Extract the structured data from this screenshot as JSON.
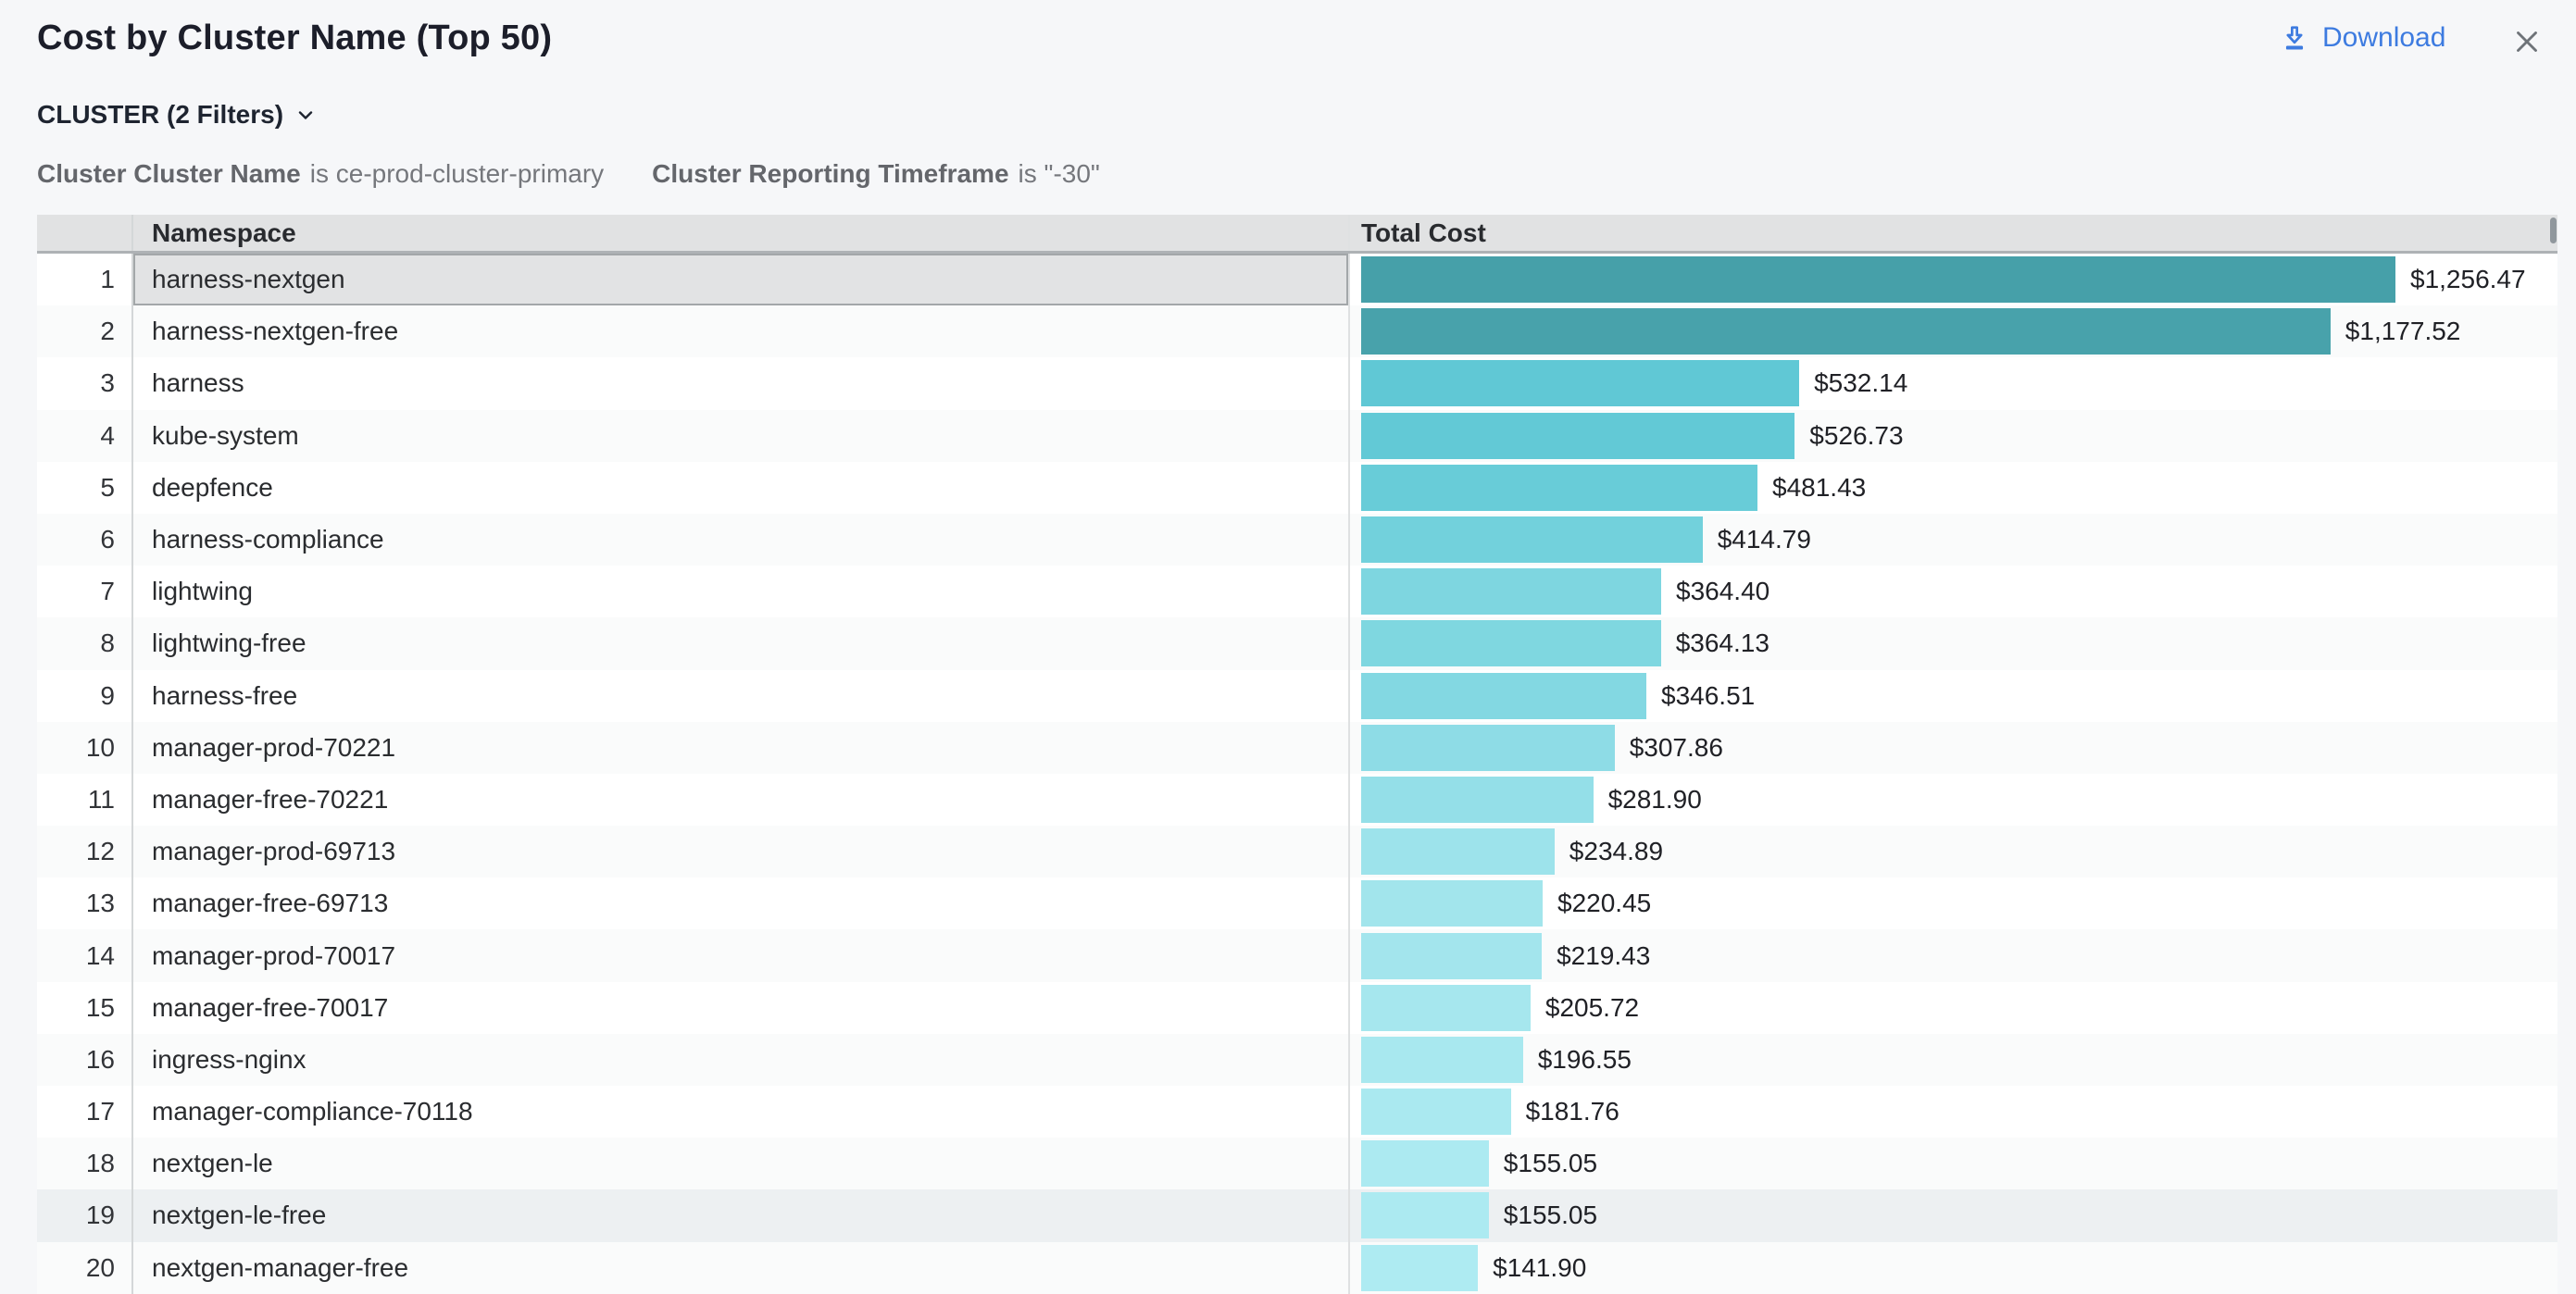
{
  "header": {
    "title": "Cost by Cluster Name (Top 50)",
    "download_label": "Download",
    "download_icon": "download-arrow-into-tray",
    "close_icon": "x-cross",
    "download_color": "#3d7be0",
    "close_color": "#6e7378"
  },
  "filters": {
    "toggle_label": "CLUSTER (2 Filters)",
    "chevron_icon": "chevron-down",
    "chips": [
      {
        "name": "Cluster Cluster Name",
        "condition": "is ce-prod-cluster-primary"
      },
      {
        "name": "Cluster Reporting Timeframe",
        "condition": "is \"-30\""
      }
    ]
  },
  "table": {
    "columns": [
      "",
      "Namespace",
      "Total Cost"
    ],
    "rows": [
      {
        "rank": 1,
        "namespace": "harness-nextgen",
        "total_cost": "$1,256.47",
        "value": 1256.47,
        "bar_color": "#46a0a9",
        "selected": true
      },
      {
        "rank": 2,
        "namespace": "harness-nextgen-free",
        "total_cost": "$1,177.52",
        "value": 1177.52,
        "bar_color": "#48a2ab"
      },
      {
        "rank": 3,
        "namespace": "harness",
        "total_cost": "$532.14",
        "value": 532.14,
        "bar_color": "#60c8d5"
      },
      {
        "rank": 4,
        "namespace": "kube-system",
        "total_cost": "$526.73",
        "value": 526.73,
        "bar_color": "#62c9d6"
      },
      {
        "rank": 5,
        "namespace": "deepfence",
        "total_cost": "$481.43",
        "value": 481.43,
        "bar_color": "#68ccd8"
      },
      {
        "rank": 6,
        "namespace": "harness-compliance",
        "total_cost": "$414.79",
        "value": 414.79,
        "bar_color": "#72d1dc"
      },
      {
        "rank": 7,
        "namespace": "lightwing",
        "total_cost": "$364.40",
        "value": 364.4,
        "bar_color": "#7ed6e0"
      },
      {
        "rank": 8,
        "namespace": "lightwing-free",
        "total_cost": "$364.13",
        "value": 364.13,
        "bar_color": "#7fd7e0"
      },
      {
        "rank": 9,
        "namespace": "harness-free",
        "total_cost": "$346.51",
        "value": 346.51,
        "bar_color": "#83d8e2"
      },
      {
        "rank": 10,
        "namespace": "manager-prod-70221",
        "total_cost": "$307.86",
        "value": 307.86,
        "bar_color": "#8edce6"
      },
      {
        "rank": 11,
        "namespace": "manager-free-70221",
        "total_cost": "$281.90",
        "value": 281.9,
        "bar_color": "#94dfe8"
      },
      {
        "rank": 12,
        "namespace": "manager-prod-69713",
        "total_cost": "$234.89",
        "value": 234.89,
        "bar_color": "#9de3eb"
      },
      {
        "rank": 13,
        "namespace": "manager-free-69713",
        "total_cost": "$220.45",
        "value": 220.45,
        "bar_color": "#a2e5ec"
      },
      {
        "rank": 14,
        "namespace": "manager-prod-70017",
        "total_cost": "$219.43",
        "value": 219.43,
        "bar_color": "#a3e5ed"
      },
      {
        "rank": 15,
        "namespace": "manager-free-70017",
        "total_cost": "$205.72",
        "value": 205.72,
        "bar_color": "#a6e7ee"
      },
      {
        "rank": 16,
        "namespace": "ingress-nginx",
        "total_cost": "$196.55",
        "value": 196.55,
        "bar_color": "#a8e8ef"
      },
      {
        "rank": 17,
        "namespace": "manager-compliance-70118",
        "total_cost": "$181.76",
        "value": 181.76,
        "bar_color": "#aae9f0"
      },
      {
        "rank": 18,
        "namespace": "nextgen-le",
        "total_cost": "$155.05",
        "value": 155.05,
        "bar_color": "#aceaf1"
      },
      {
        "rank": 19,
        "namespace": "nextgen-le-free",
        "total_cost": "$155.05",
        "value": 155.05,
        "bar_color": "#aceaf1",
        "hovered": true
      },
      {
        "rank": 20,
        "namespace": "nextgen-manager-free",
        "total_cost": "$141.90",
        "value": 141.9,
        "bar_color": "#aeebf2"
      }
    ]
  }
}
